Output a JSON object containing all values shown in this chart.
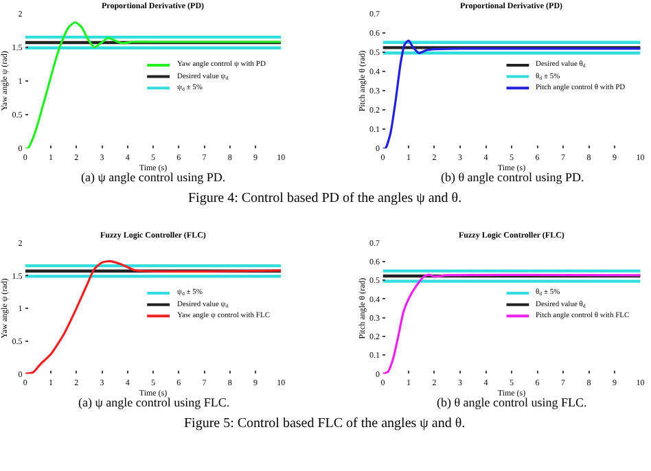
{
  "chart_data": [
    {
      "type": "line",
      "title": "Proportional Derivative (PD)",
      "xlabel": "Time (s)",
      "ylabel": "Yaw angle ψ (rad)",
      "xlim": [
        0,
        10
      ],
      "ylim": [
        0,
        2
      ],
      "xticks": [
        0,
        1,
        2,
        3,
        4,
        5,
        6,
        7,
        8,
        9,
        10
      ],
      "yticks": [
        0,
        0.5,
        1,
        1.5,
        2
      ],
      "legend": "right",
      "annotations": [
        "(a) ψ angle control using PD."
      ],
      "series": [
        {
          "name": "Yaw angle control ψ with PD",
          "color": "#22ee22",
          "x": [
            0,
            0.1,
            0.3,
            0.5,
            0.7,
            0.9,
            1.1,
            1.3,
            1.5,
            1.7,
            1.95,
            2.2,
            2.45,
            2.7,
            2.95,
            3.25,
            3.5,
            3.8,
            4.2,
            5,
            10
          ],
          "values": [
            0,
            0,
            0.15,
            0.38,
            0.65,
            0.92,
            1.2,
            1.45,
            1.65,
            1.8,
            1.87,
            1.8,
            1.62,
            1.5,
            1.56,
            1.64,
            1.6,
            1.56,
            1.58,
            1.58,
            1.58
          ]
        },
        {
          "name": "Desired value ψ$_{d}$",
          "color": "#222222",
          "x": [
            0,
            10
          ],
          "values": [
            1.57,
            1.57
          ]
        },
        {
          "name": "ψ$_{d}$ ± 5%",
          "color": "#33dddd",
          "x": [
            0,
            10
          ],
          "values": [
            1.65,
            1.65
          ]
        },
        {
          "color": "#33dddd",
          "x": [
            0,
            10
          ],
          "values": [
            1.49,
            1.49
          ]
        }
      ]
    },
    {
      "type": "line",
      "title": "Proportional Derivative (PD)",
      "xlabel": "Time (s)",
      "ylabel": "Pitch angle θ (rad)",
      "xlim": [
        0,
        10
      ],
      "ylim": [
        0,
        0.7
      ],
      "xticks": [
        0,
        1,
        2,
        3,
        4,
        5,
        6,
        7,
        8,
        9,
        10
      ],
      "yticks": [
        0,
        0.1,
        0.2,
        0.3,
        0.4,
        0.5,
        0.6,
        0.7
      ],
      "legend": "right",
      "annotations": [
        "(b) θ angle control using PD.",
        "Figure 4: Control based PD of the angles ψ and θ."
      ],
      "series": [
        {
          "name": "Desired value θ$_{d}$",
          "color": "#222222",
          "x": [
            0,
            10
          ],
          "values": [
            0.523,
            0.523
          ]
        },
        {
          "name": "θ$_{d}$ ± 5%",
          "color": "#33dddd",
          "x": [
            0,
            10
          ],
          "values": [
            0.55,
            0.55
          ]
        },
        {
          "color": "#33dddd",
          "x": [
            0,
            10
          ],
          "values": [
            0.495,
            0.495
          ]
        },
        {
          "name": "Pitch angle control θ with PD",
          "color": "#2222dd",
          "x": [
            0,
            0.1,
            0.3,
            0.5,
            0.7,
            0.85,
            1.0,
            1.15,
            1.4,
            1.7,
            2.0,
            3,
            10
          ],
          "values": [
            0,
            0,
            0.08,
            0.25,
            0.45,
            0.54,
            0.56,
            0.53,
            0.495,
            0.51,
            0.515,
            0.518,
            0.518
          ]
        }
      ]
    },
    {
      "type": "line",
      "title": "Fuzzy Logic Controller (FLC)",
      "xlabel": "Time (s)",
      "ylabel": "Yaw angle ψ (rad)",
      "xlim": [
        0,
        10
      ],
      "ylim": [
        0,
        2
      ],
      "xticks": [
        0,
        1,
        2,
        3,
        4,
        5,
        6,
        7,
        8,
        9,
        10
      ],
      "yticks": [
        0,
        0.5,
        1,
        1.5,
        2
      ],
      "legend": "right",
      "annotations": [
        "(a) ψ angle control using FLC."
      ],
      "series": [
        {
          "name": "ψ$_{d}$ ± 5%",
          "color": "#33dddd",
          "x": [
            0,
            10
          ],
          "values": [
            1.65,
            1.65
          ]
        },
        {
          "color": "#33dddd",
          "x": [
            0,
            10
          ],
          "values": [
            1.49,
            1.49
          ]
        },
        {
          "name": "Desired value ψ$_{d}$",
          "color": "#222222",
          "x": [
            0,
            10
          ],
          "values": [
            1.57,
            1.57
          ]
        },
        {
          "name": "Yaw angle ψ control with FLC",
          "color": "#ee2222",
          "x": [
            0,
            0.3,
            0.6,
            1,
            1.5,
            2,
            2.4,
            2.7,
            3.0,
            3.3,
            3.7,
            4.0,
            4.3,
            10
          ],
          "values": [
            0,
            0.02,
            0.15,
            0.3,
            0.6,
            1.0,
            1.35,
            1.6,
            1.7,
            1.72,
            1.68,
            1.63,
            1.58,
            1.58
          ]
        }
      ]
    },
    {
      "type": "line",
      "title": "Fuzzy Logic Controller (FLC)",
      "xlabel": "Time (s)",
      "ylabel": "Pitch angle θ (rad)",
      "xlim": [
        0,
        10
      ],
      "ylim": [
        0,
        0.7
      ],
      "xticks": [
        0,
        1,
        2,
        3,
        4,
        5,
        6,
        7,
        8,
        9,
        10
      ],
      "yticks": [
        0,
        0.1,
        0.2,
        0.3,
        0.4,
        0.5,
        0.6,
        0.7
      ],
      "legend": "right",
      "annotations": [
        "(b) θ angle control using FLC.",
        "Figure 5: Control based FLC of the angles ψ and θ."
      ],
      "series": [
        {
          "name": "θ$_{d}$ ± 5%",
          "color": "#33dddd",
          "x": [
            0,
            10
          ],
          "values": [
            0.55,
            0.55
          ]
        },
        {
          "color": "#33dddd",
          "x": [
            0,
            10
          ],
          "values": [
            0.495,
            0.495
          ]
        },
        {
          "name": "Desired value θ$_{d}$",
          "color": "#222222",
          "x": [
            0,
            10
          ],
          "values": [
            0.523,
            0.523
          ]
        },
        {
          "name": "Pitch angle control θ with FLC",
          "color": "#ee22ee",
          "x": [
            0,
            0.2,
            0.4,
            0.6,
            0.8,
            1.0,
            1.3,
            1.6,
            1.8,
            2.0,
            2.5,
            10
          ],
          "values": [
            0,
            0.01,
            0.08,
            0.2,
            0.33,
            0.4,
            0.47,
            0.52,
            0.53,
            0.52,
            0.527,
            0.527
          ]
        }
      ]
    }
  ]
}
